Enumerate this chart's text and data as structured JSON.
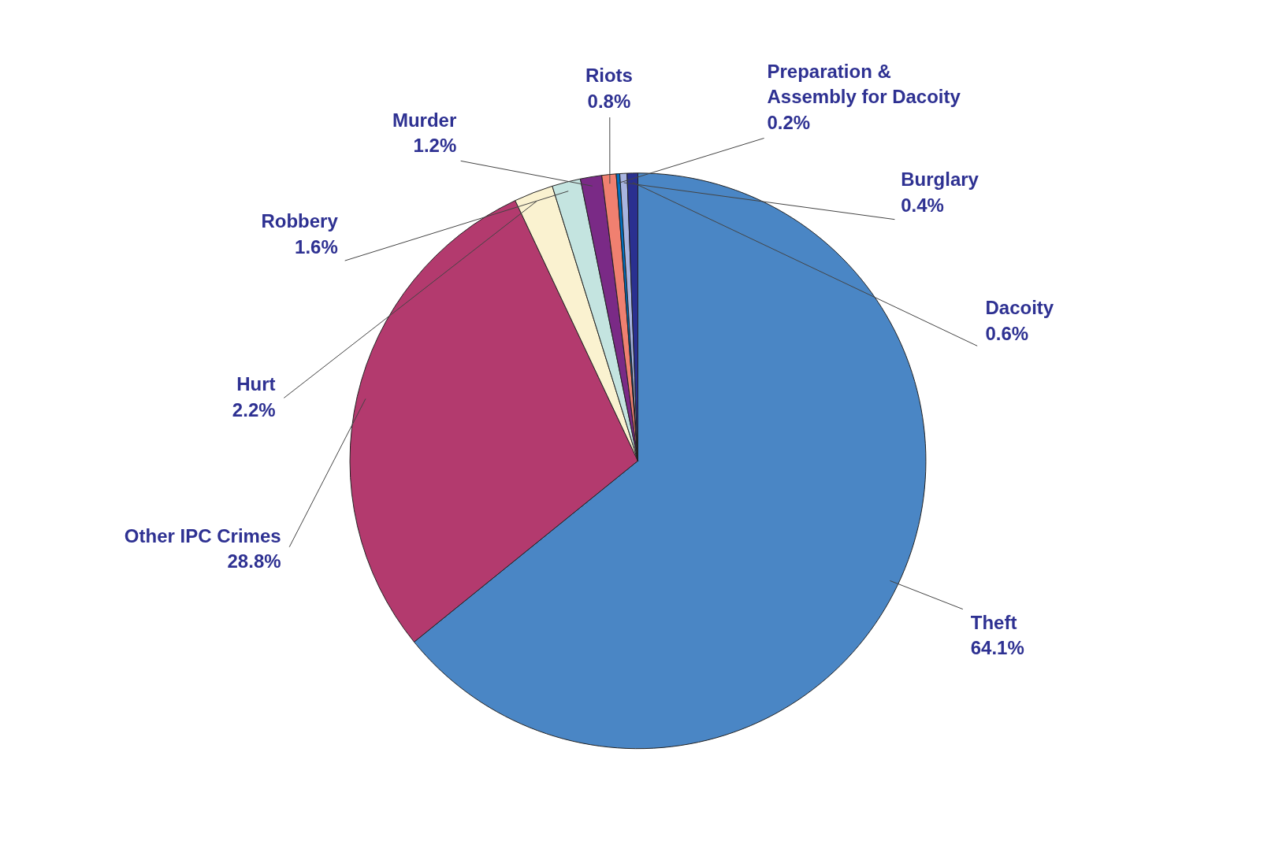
{
  "chart_data": {
    "type": "pie",
    "categories": [
      "Theft",
      "Other IPC Crimes",
      "Hurt",
      "Robbery",
      "Murder",
      "Riots",
      "Preparation & Assembly for Dacoity",
      "Burglary",
      "Dacoity"
    ],
    "values": [
      64.1,
      28.8,
      2.2,
      1.6,
      1.2,
      0.8,
      0.2,
      0.4,
      0.6
    ],
    "value_labels": [
      "64.1%",
      "28.8%",
      "2.2%",
      "1.6%",
      "1.2%",
      "0.8%",
      "0.2%",
      "0.4%",
      "0.6%"
    ],
    "colors": [
      "#4a86c5",
      "#b33a6e",
      "#faf2d0",
      "#c4e4e0",
      "#7a2a86",
      "#f08070",
      "#0070c0",
      "#a8b4e0",
      "#2a3090"
    ]
  }
}
